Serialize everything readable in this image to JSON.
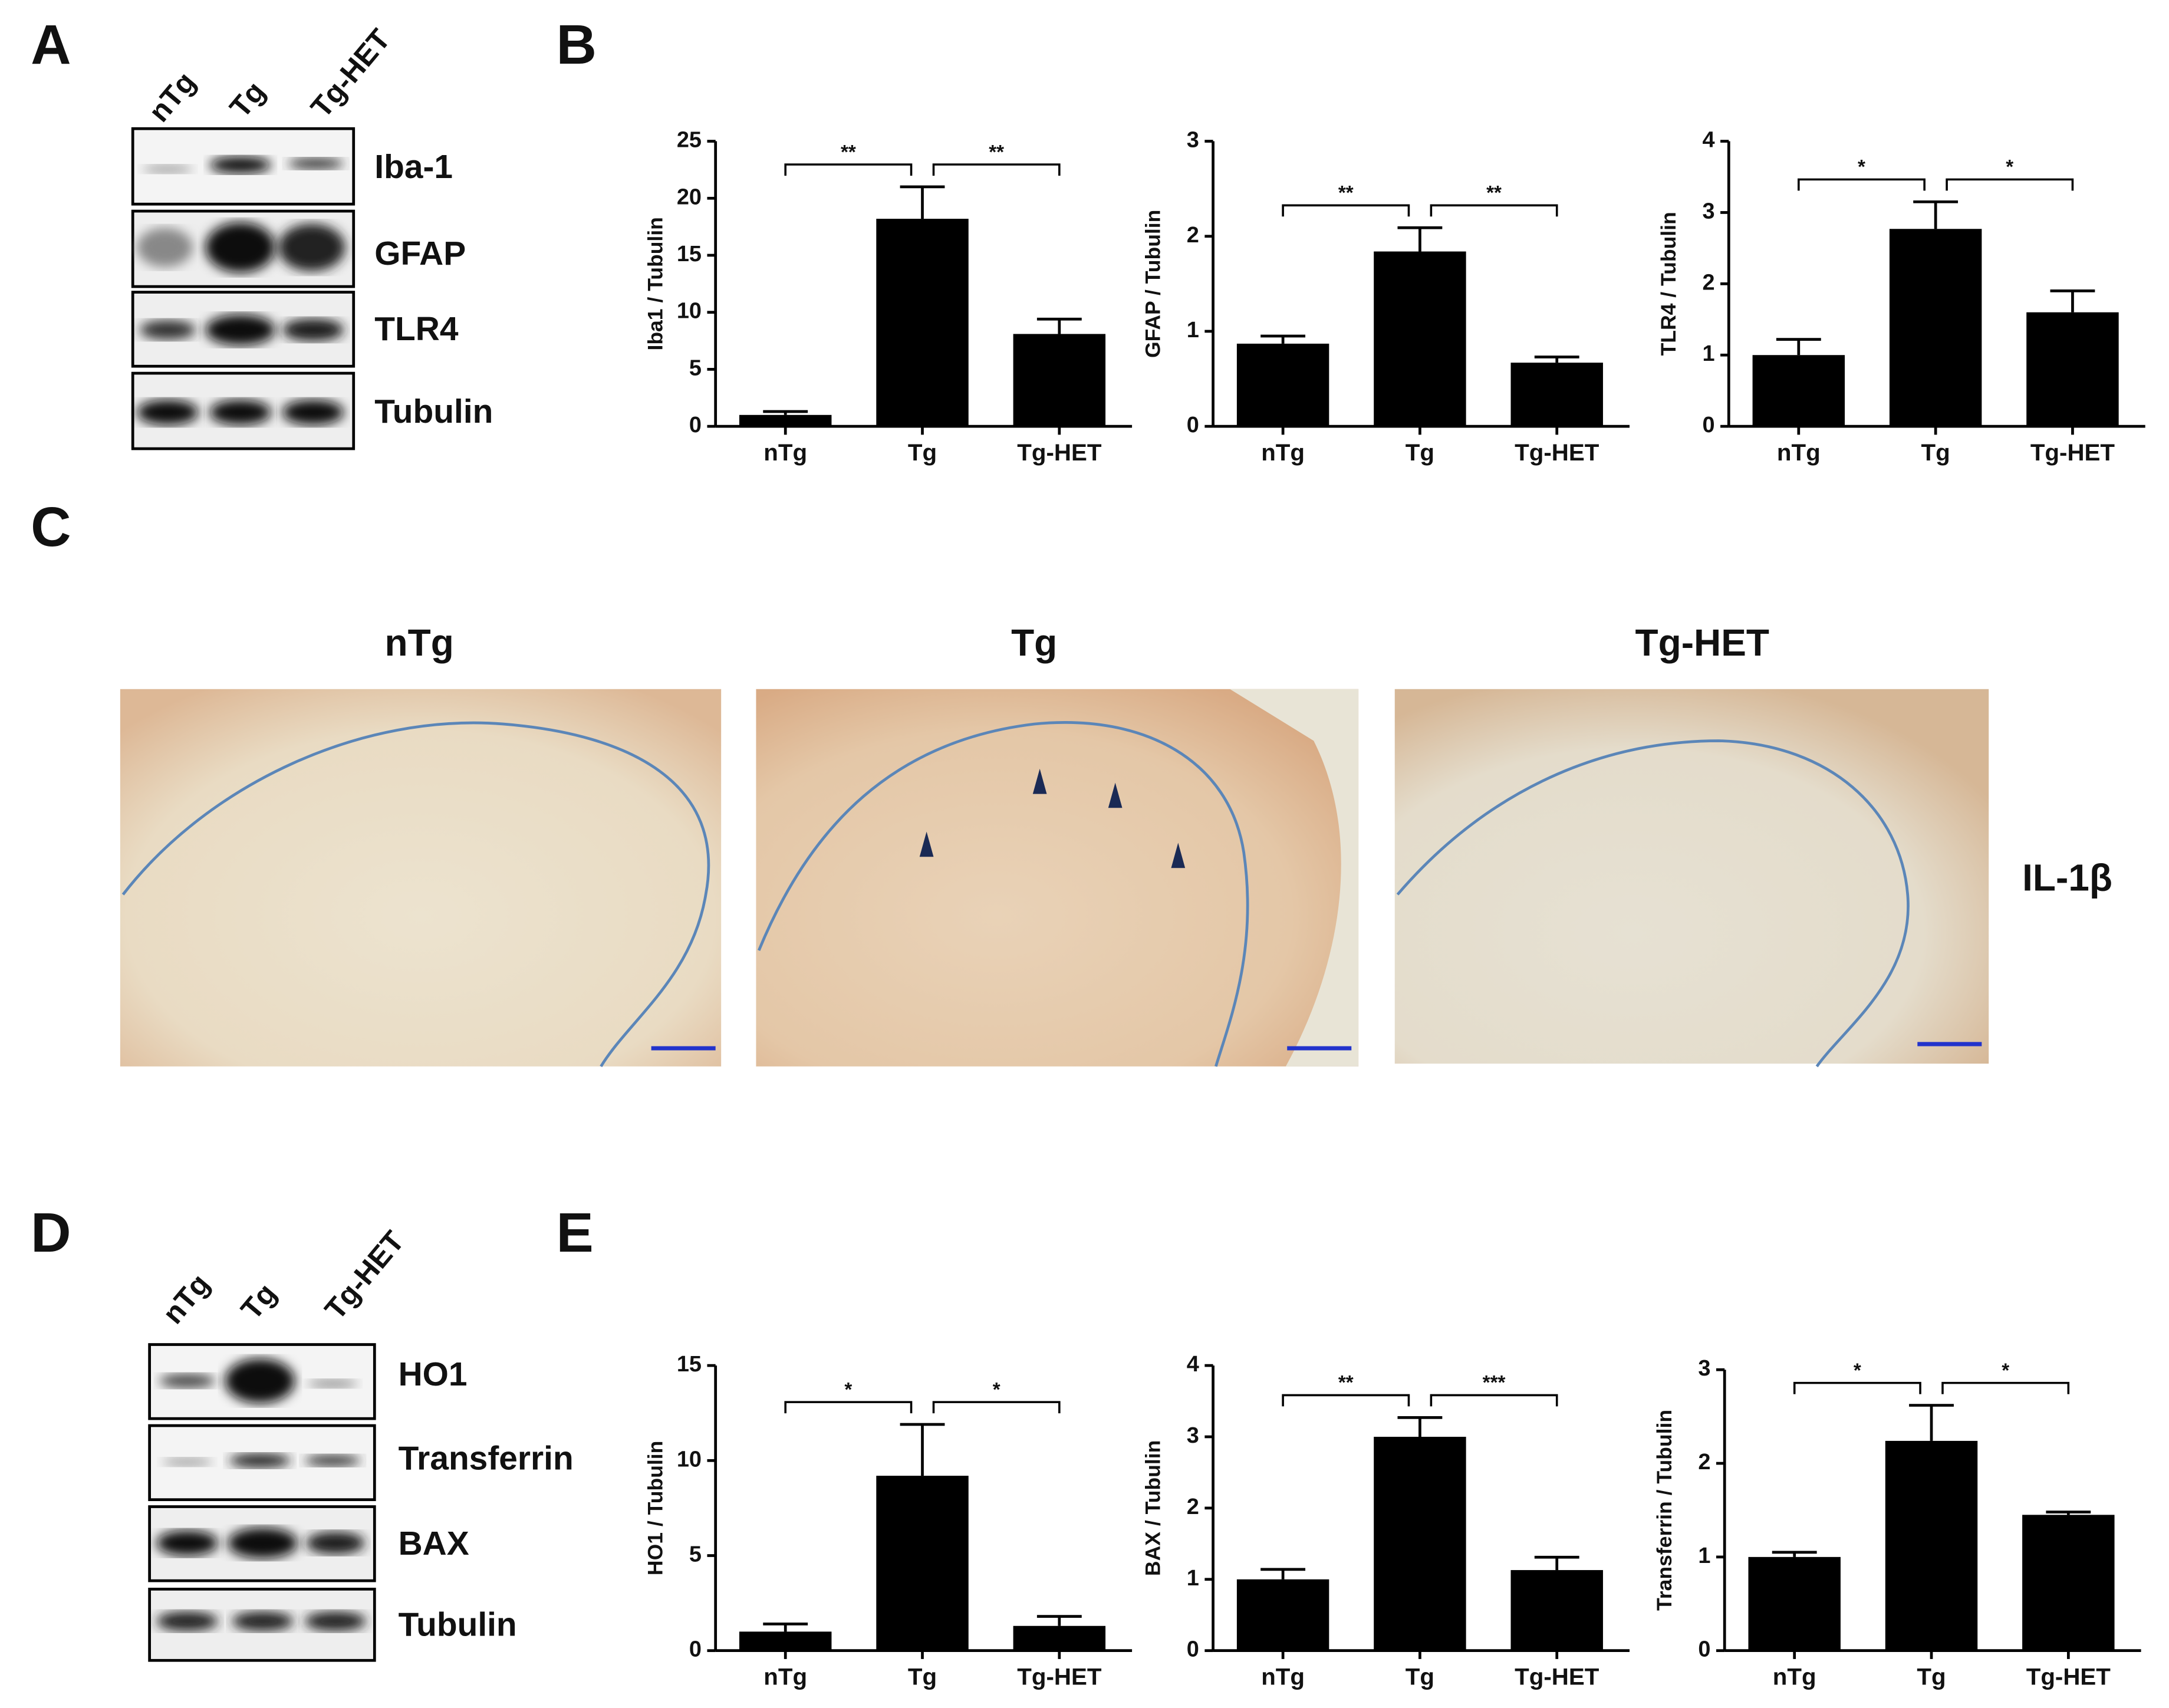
{
  "panel_labels": [
    "A",
    "B",
    "C",
    "D",
    "E"
  ],
  "blot_a": {
    "lanes": [
      "nTg",
      "Tg",
      "Tg-HET"
    ],
    "bands": [
      "Iba-1",
      "GFAP",
      "TLR4",
      "Tubulin"
    ]
  },
  "micrographs": {
    "titles": [
      "nTg",
      "Tg",
      "Tg-HET"
    ],
    "stain": "IL-1β"
  },
  "blot_d": {
    "lanes": [
      "nTg",
      "Tg",
      "Tg-HET"
    ],
    "bands": [
      "HO1",
      "Transferrin",
      "BAX",
      "Tubulin"
    ]
  },
  "chart_data": [
    {
      "type": "bar",
      "ylabel": "Iba1 / Tubulin",
      "categories": [
        "nTg",
        "Tg",
        "Tg-HET"
      ],
      "values": [
        1,
        18.2,
        8.1
      ],
      "errors": [
        0.3,
        2.8,
        1.3
      ],
      "color": "#000000",
      "ylim": [
        0,
        25
      ],
      "yticks": [
        0,
        5,
        10,
        15,
        20,
        25
      ],
      "significance": [
        "**",
        "**"
      ]
    },
    {
      "type": "bar",
      "ylabel": "GFAP / Tubulin",
      "categories": [
        "nTg",
        "Tg",
        "Tg-HET"
      ],
      "values": [
        0.87,
        1.84,
        0.67
      ],
      "errors": [
        0.08,
        0.25,
        0.06
      ],
      "color": "#000000",
      "ylim": [
        0,
        3
      ],
      "yticks": [
        0,
        1,
        2,
        3
      ],
      "significance": [
        "**",
        "**"
      ]
    },
    {
      "type": "bar",
      "ylabel": "TLR4 / Tubulin",
      "categories": [
        "nTg",
        "Tg",
        "Tg-HET"
      ],
      "values": [
        1.0,
        2.77,
        1.6
      ],
      "errors": [
        0.22,
        0.38,
        0.3
      ],
      "color": "#000000",
      "ylim": [
        0,
        4
      ],
      "yticks": [
        0,
        1,
        2,
        3,
        4
      ],
      "significance": [
        "*",
        "*"
      ]
    },
    {
      "type": "bar",
      "ylabel": "HO1 / Tubulin",
      "categories": [
        "nTg",
        "Tg",
        "Tg-HET"
      ],
      "values": [
        1.0,
        9.2,
        1.3
      ],
      "errors": [
        0.4,
        2.7,
        0.5
      ],
      "color": "#000000",
      "ylim": [
        0,
        15
      ],
      "yticks": [
        0,
        5,
        10,
        15
      ],
      "significance": [
        "*",
        "*"
      ]
    },
    {
      "type": "bar",
      "ylabel": "BAX / Tubulin",
      "categories": [
        "nTg",
        "Tg",
        "Tg-HET"
      ],
      "values": [
        1.0,
        3.0,
        1.13
      ],
      "errors": [
        0.14,
        0.27,
        0.18
      ],
      "color": "#000000",
      "ylim": [
        0,
        4
      ],
      "yticks": [
        0,
        1,
        2,
        3,
        4
      ],
      "significance": [
        "**",
        "***"
      ]
    },
    {
      "type": "bar",
      "ylabel": "Transferrin / Tubulin",
      "categories": [
        "nTg",
        "Tg",
        "Tg-HET"
      ],
      "values": [
        1.0,
        2.24,
        1.45
      ],
      "errors": [
        0.05,
        0.38,
        0.03
      ],
      "color": "#000000",
      "ylim": [
        0,
        3
      ],
      "yticks": [
        0,
        1,
        2,
        3
      ],
      "significance": [
        "*",
        "*"
      ]
    }
  ]
}
